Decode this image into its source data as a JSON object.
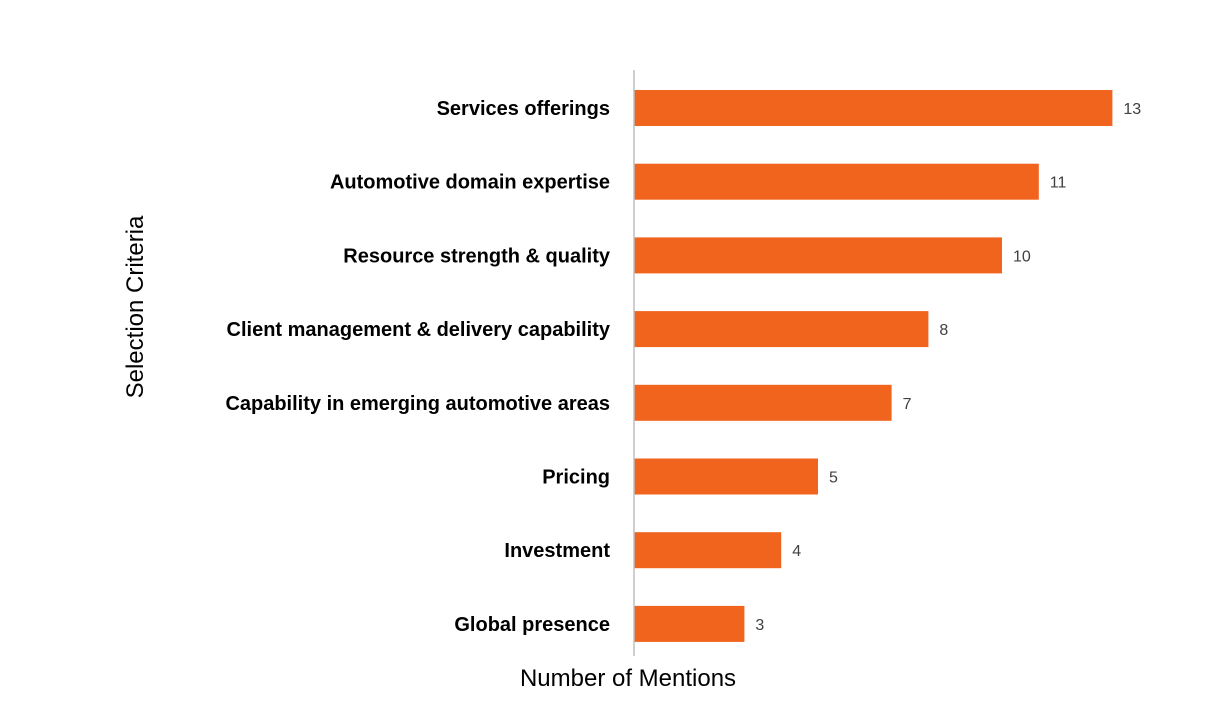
{
  "chart_data": {
    "type": "bar",
    "orientation": "horizontal",
    "categories": [
      "Services offerings",
      "Automotive domain expertise",
      "Resource strength & quality",
      "Client management & delivery capability",
      "Capability in emerging automotive areas",
      "Pricing",
      "Investment",
      "Global presence"
    ],
    "values": [
      13,
      11,
      10,
      8,
      7,
      5,
      4,
      3
    ],
    "title": "",
    "xlabel": "Number of Mentions",
    "ylabel": "Selection Criteria",
    "xlim": [
      0,
      13
    ],
    "grid": false,
    "legend": "none",
    "data_labels": true,
    "colors": {
      "bar": "#F1641E",
      "axis_line": "#BFBFBF",
      "value_label": "#404040",
      "category_label": "#000000"
    }
  }
}
